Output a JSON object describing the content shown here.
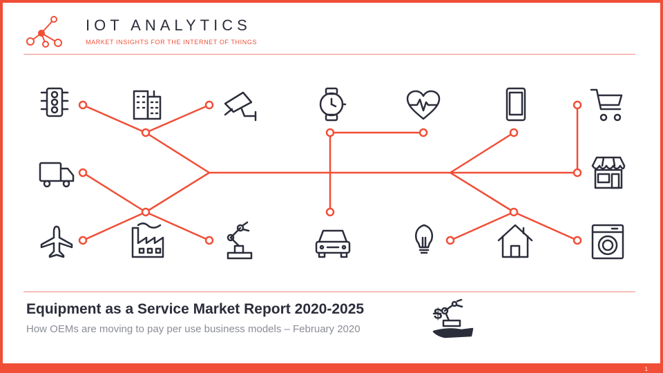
{
  "brand": {
    "name": "IOT ANALYTICS",
    "tagline": "MARKET INSIGHTS FOR THE INTERNET OF THINGS",
    "logo_icon": "network-nodes-icon"
  },
  "report": {
    "title": "Equipment as a Service Market Report 2020-2025",
    "subtitle": "How OEMs are moving to pay per use business models – February 2020",
    "title_icon": "robot-arm-on-hand-dollar-icon"
  },
  "diagram_icons": [
    "traffic-light-icon",
    "buildings-icon",
    "security-camera-icon",
    "smartwatch-icon",
    "heart-rate-icon",
    "smartphone-icon",
    "shopping-cart-icon",
    "truck-icon",
    "store-icon",
    "airplane-icon",
    "factory-icon",
    "robot-arm-icon",
    "car-icon",
    "light-bulb-icon",
    "house-icon",
    "washing-machine-icon"
  ],
  "footer": {
    "page_number": "1"
  },
  "colors": {
    "accent": "#f04e37",
    "text_dark": "#2b2d3a",
    "text_muted": "#8a8d96",
    "icon_stroke": "#2b2d3a"
  }
}
